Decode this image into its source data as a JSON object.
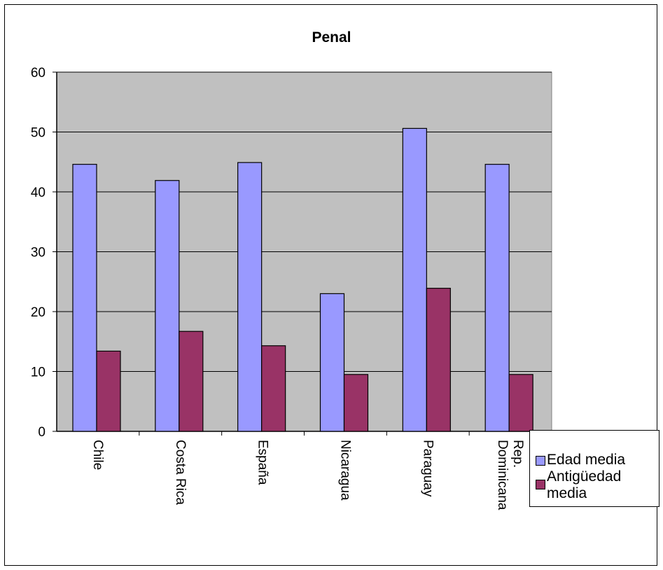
{
  "chart_data": {
    "type": "bar",
    "title": "Penal",
    "categories": [
      "Chile",
      "Costa Rica",
      "España",
      "Nicaragua",
      "Paraguay",
      "Rep. Dominicana"
    ],
    "series": [
      {
        "name": "Edad media",
        "color": "#9999ff",
        "values": [
          44.6,
          41.9,
          44.9,
          23.0,
          50.6,
          44.6
        ]
      },
      {
        "name": "Antigüedad media",
        "color": "#993366",
        "values": [
          13.4,
          16.7,
          14.3,
          9.5,
          23.9,
          9.5
        ]
      }
    ],
    "ylim": [
      0,
      60
    ],
    "yticks": [
      0,
      10,
      20,
      30,
      40,
      50,
      60
    ],
    "grid": true,
    "legend_position": "bottom-right",
    "plot_background": "#c0c0c0"
  }
}
